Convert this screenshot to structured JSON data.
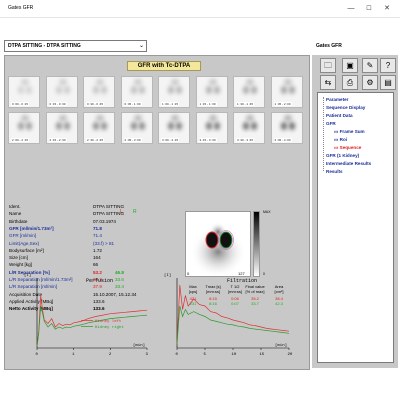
{
  "window": {
    "title": "Gates GFR",
    "min": "—",
    "max": "☐",
    "close": "✕"
  },
  "toolbar": {
    "combo_value": "DTPA SITTING - DTPA SITTING"
  },
  "right_panel": {
    "title": "Gates GFR"
  },
  "main": {
    "title": "GFR with Tc-DTPA"
  },
  "thumbs": [
    "0 :00 - 0 :15",
    "0 :15 - 0 :30",
    "0 :30 - 0 :45",
    "0 :45 - 1 :00",
    "1 :00 - 1 :15",
    "1 :15 - 1 :30",
    "1 :30 - 1 :45",
    "1 :45 - 2 :00",
    "2 :00 - 2 :15",
    "2 :15 - 2 :30",
    "2 :30 - 2 :45",
    "2 :45 - 3 :00",
    "3 :00 - 3 :15",
    "3 :15 - 3 :30",
    "3 :30 - 3 :45",
    "3 :45 - 4 :00"
  ],
  "info": {
    "lr_left": "L",
    "lr_right": "R",
    "rows": [
      {
        "k": "Ident.",
        "v": "DTPA SITTING",
        "cls": ""
      },
      {
        "k": "Name",
        "v": "DTPA SITTING",
        "cls": ""
      },
      {
        "k": "Birthdate",
        "v": "07.03.1974",
        "cls": ""
      },
      {
        "k": "GFR [ml/min/1.73m²]",
        "v": "71.8",
        "cls": "blue bold"
      },
      {
        "k": "GFR [ml/min]",
        "v": "71.4",
        "cls": "blue"
      },
      {
        "k": "Limit(Age,Sex)",
        "v": "(33.f)   > 81",
        "cls": "blue"
      },
      {
        "k": "Bodysurface [m²]",
        "v": "1.72",
        "cls": ""
      },
      {
        "k": "Size [cm]",
        "v": "164",
        "cls": ""
      },
      {
        "k": "Weight [kg]",
        "v": "66",
        "cls": ""
      },
      {
        "k": "L/R Separation [%]",
        "v": "53.2",
        "v2": "46.8",
        "cls": "blue bold"
      },
      {
        "k": "L/R Separation [ml/min/1.73m²]",
        "v": "38.2",
        "v2": "33.6",
        "cls": "blue"
      },
      {
        "k": "L/R Separation [ml/min]",
        "v": "37.9",
        "v2": "33.4",
        "cls": "blue"
      },
      {
        "k": "Acquisition Date",
        "v": "15.10.2007, 15.12.34",
        "cls": ""
      },
      {
        "k": "Applied Activity [MBq]",
        "v": "133.6",
        "cls": ""
      },
      {
        "k": "Netto Activity [MBq]",
        "v": "133.6",
        "cls": "bold"
      }
    ]
  },
  "image": {
    "scale_max": "MAX",
    "scale_min": "0",
    "axis_left": "0",
    "axis_right": "127"
  },
  "table": {
    "headers": [
      "Max\n[cps]",
      "Tmax [s]\n[mm:ss]",
      "T 1/2\n[mm:ss]",
      "Final value\n[% of max]",
      "Area\n[cm²]"
    ],
    "rows": [
      {
        "color": "red",
        "vals": [
          "421",
          "8:15",
          "0:06",
          "35.2",
          "38.4"
        ]
      },
      {
        "color": "green",
        "vals": [
          "231",
          "8:16",
          "0:07",
          "33.7",
          "42.3"
        ]
      }
    ]
  },
  "chart_data": [
    {
      "type": "line",
      "title": "Perfusion",
      "ylabel": "[I]",
      "xlabel": "[min]",
      "xlim": [
        0,
        3
      ],
      "x_ticks": [
        "0",
        "1",
        "2",
        "3"
      ],
      "series": [
        {
          "name": "Kidney left",
          "color": "#e03030",
          "values": [
            [
              0,
              0.02
            ],
            [
              0.05,
              0.25
            ],
            [
              0.1,
              0.75
            ],
            [
              0.15,
              0.55
            ],
            [
              0.2,
              0.4
            ],
            [
              0.3,
              0.35
            ],
            [
              0.4,
              0.42
            ],
            [
              0.5,
              0.3
            ],
            [
              0.6,
              0.35
            ],
            [
              0.7,
              0.32
            ],
            [
              0.8,
              0.34
            ],
            [
              0.9,
              0.33
            ],
            [
              1.0,
              0.36
            ],
            [
              1.2,
              0.38
            ],
            [
              1.4,
              0.42
            ],
            [
              1.6,
              0.45
            ],
            [
              1.8,
              0.47
            ],
            [
              2.0,
              0.49
            ],
            [
              2.2,
              0.5
            ],
            [
              2.4,
              0.51
            ],
            [
              2.6,
              0.52
            ],
            [
              2.8,
              0.53
            ],
            [
              3.0,
              0.54
            ]
          ]
        },
        {
          "name": "Kidney right",
          "color": "#2a9a2a",
          "values": [
            [
              0,
              0.02
            ],
            [
              0.05,
              0.22
            ],
            [
              0.1,
              0.6
            ],
            [
              0.15,
              0.5
            ],
            [
              0.2,
              0.38
            ],
            [
              0.3,
              0.3
            ],
            [
              0.4,
              0.35
            ],
            [
              0.5,
              0.27
            ],
            [
              0.6,
              0.3
            ],
            [
              0.7,
              0.28
            ],
            [
              0.8,
              0.3
            ],
            [
              0.9,
              0.29
            ],
            [
              1.0,
              0.31
            ],
            [
              1.2,
              0.33
            ],
            [
              1.4,
              0.36
            ],
            [
              1.6,
              0.38
            ],
            [
              1.8,
              0.4
            ],
            [
              2.0,
              0.42
            ],
            [
              2.2,
              0.43
            ],
            [
              2.4,
              0.44
            ],
            [
              2.6,
              0.45
            ],
            [
              2.8,
              0.46
            ],
            [
              3.0,
              0.47
            ]
          ]
        }
      ]
    },
    {
      "type": "line",
      "title": "Filtration",
      "ylabel": "[I]",
      "xlabel": "[min]",
      "xlim": [
        0,
        20
      ],
      "x_ticks": [
        "0",
        "5",
        "10",
        "15",
        "20"
      ],
      "series": [
        {
          "name": "",
          "color": "#e03030",
          "values": [
            [
              0,
              0.05
            ],
            [
              0.5,
              0.9
            ],
            [
              1,
              0.55
            ],
            [
              1.5,
              0.75
            ],
            [
              2,
              0.6
            ],
            [
              3,
              0.7
            ],
            [
              4,
              0.62
            ],
            [
              5,
              0.6
            ],
            [
              6,
              0.52
            ],
            [
              7,
              0.5
            ],
            [
              8,
              0.45
            ],
            [
              9,
              0.43
            ],
            [
              10,
              0.4
            ],
            [
              11,
              0.38
            ],
            [
              12,
              0.36
            ],
            [
              13,
              0.33
            ],
            [
              14,
              0.32
            ],
            [
              15,
              0.3
            ],
            [
              16,
              0.28
            ],
            [
              17,
              0.27
            ],
            [
              18,
              0.26
            ],
            [
              19,
              0.25
            ],
            [
              20,
              0.24
            ]
          ]
        },
        {
          "name": "",
          "color": "#2a9a2a",
          "values": [
            [
              0,
              0.05
            ],
            [
              0.5,
              0.6
            ],
            [
              1,
              0.45
            ],
            [
              1.5,
              0.55
            ],
            [
              2,
              0.48
            ],
            [
              3,
              0.52
            ],
            [
              4,
              0.48
            ],
            [
              5,
              0.45
            ],
            [
              6,
              0.4
            ],
            [
              7,
              0.38
            ],
            [
              8,
              0.36
            ],
            [
              9,
              0.34
            ],
            [
              10,
              0.33
            ],
            [
              11,
              0.31
            ],
            [
              12,
              0.3
            ],
            [
              13,
              0.28
            ],
            [
              14,
              0.27
            ],
            [
              15,
              0.26
            ],
            [
              16,
              0.25
            ],
            [
              17,
              0.24
            ],
            [
              18,
              0.23
            ],
            [
              19,
              0.22
            ],
            [
              20,
              0.21
            ]
          ]
        }
      ]
    }
  ],
  "tree": [
    {
      "label": "Parameter",
      "level": 0,
      "sel": false
    },
    {
      "label": "Sequence Display",
      "level": 0,
      "sel": false
    },
    {
      "label": "Patient Data",
      "level": 0,
      "sel": false
    },
    {
      "label": "GFR",
      "level": 0,
      "sel": false
    },
    {
      "label": "Frame Sum",
      "level": 1,
      "sel": false
    },
    {
      "label": "Roi",
      "level": 1,
      "sel": false
    },
    {
      "label": "Sequence",
      "level": 1,
      "sel": true
    },
    {
      "label": "GFR (1 Kidney)",
      "level": 0,
      "sel": false
    },
    {
      "label": "Intermediate Results",
      "level": 0,
      "sel": false
    },
    {
      "label": "Results",
      "level": 0,
      "sel": false
    }
  ],
  "colors": {
    "panel": "#c8c8c8",
    "title_bg": "#f4e79a",
    "blue": "#1a2e9a",
    "red": "#d22",
    "green": "#2a2"
  }
}
